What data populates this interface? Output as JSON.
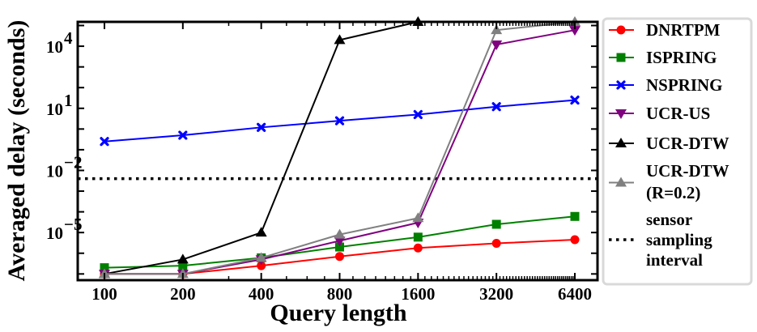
{
  "chart_data": {
    "type": "line",
    "xlabel": "Query length",
    "ylabel": "Averaged delay (seconds)",
    "x": [
      100,
      200,
      400,
      800,
      1600,
      3200,
      6400
    ],
    "x_scale": "log2",
    "y_scale": "log10",
    "ylim": [
      5e-08,
      150000
    ],
    "yticks": [
      {
        "value": 1e-05,
        "base": "10",
        "exp": "−5"
      },
      {
        "value": 0.01,
        "base": "10",
        "exp": "−2"
      },
      {
        "value": 10,
        "base": "10",
        "exp": "1"
      },
      {
        "value": 10000,
        "base": "10",
        "exp": "4"
      }
    ],
    "xtick_labels": [
      "100",
      "200",
      "400",
      "800",
      "1600",
      "3200",
      "6400"
    ],
    "series": [
      {
        "name": "DNRTPM",
        "color": "#ff0000",
        "marker": "circle",
        "values": [
          1e-07,
          1e-07,
          2.5e-07,
          7e-07,
          1.8e-06,
          3e-06,
          4.5e-06
        ]
      },
      {
        "name": "ISPRING",
        "color": "#008000",
        "marker": "square",
        "values": [
          2e-07,
          2.5e-07,
          6e-07,
          2e-06,
          6e-06,
          2.5e-05,
          6e-05
        ]
      },
      {
        "name": "NSPRING",
        "color": "#0000ff",
        "marker": "x",
        "values": [
          0.25,
          0.5,
          1.2,
          2.5,
          5,
          12,
          25
        ]
      },
      {
        "name": "UCR-US",
        "color": "#800080",
        "marker": "triangle-down",
        "values": [
          1e-07,
          1e-07,
          5e-07,
          4e-06,
          3e-05,
          12000,
          60000
        ]
      },
      {
        "name": "UCR-DTW",
        "color": "#000000",
        "marker": "triangle-up",
        "values": [
          1e-07,
          5e-07,
          1e-05,
          20000,
          150000,
          null,
          null
        ]
      },
      {
        "name": "UCR-DTW (R=0.2)",
        "color": "#808080",
        "marker": "triangle-up",
        "values": [
          1e-07,
          1e-07,
          6e-07,
          8e-06,
          5e-05,
          60000,
          150000
        ]
      }
    ],
    "reference_line": {
      "name": "sensor sampling interval",
      "value": 0.004,
      "style": "dotted",
      "color": "#000000"
    },
    "legend": {
      "placement": "right-outside",
      "entries": [
        {
          "lines": [
            "DNRTPM"
          ]
        },
        {
          "lines": [
            "ISPRING"
          ]
        },
        {
          "lines": [
            "NSPRING"
          ]
        },
        {
          "lines": [
            "UCR-US"
          ]
        },
        {
          "lines": [
            "UCR-DTW"
          ]
        },
        {
          "lines": [
            "UCR-DTW",
            "(R=0.2)"
          ]
        },
        {
          "lines": [
            "sensor",
            "sampling",
            "interval"
          ]
        }
      ]
    }
  }
}
